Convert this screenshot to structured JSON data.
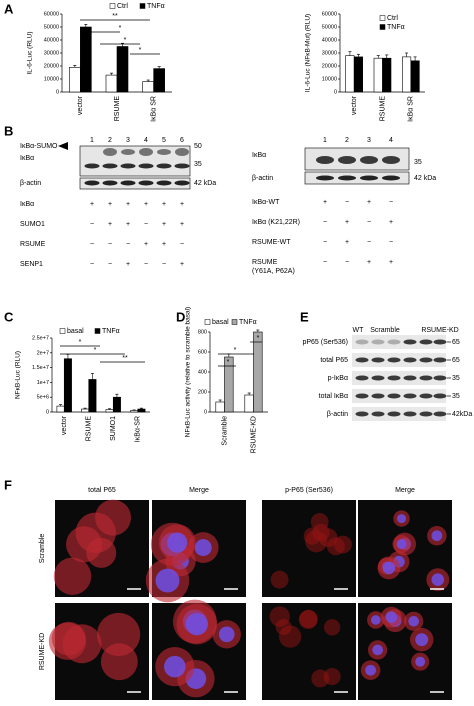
{
  "chart_data": [
    {
      "type": "bar",
      "ylabel": "IL-6-Luc (RLU)",
      "categories": [
        "vector",
        "RSUME",
        "IκBα SR"
      ],
      "series": [
        {
          "name": "Ctrl",
          "color": "#ffffff",
          "values": [
            19000,
            13000,
            8000
          ],
          "errors": [
            1500,
            1500,
            1200
          ]
        },
        {
          "name": "TNFα",
          "color": "#000000",
          "values": [
            50000,
            35000,
            18000
          ],
          "errors": [
            2000,
            2500,
            1500
          ]
        }
      ],
      "ylim": [
        0,
        60000
      ],
      "yticks": [
        0,
        10000,
        20000,
        30000,
        40000,
        50000,
        60000
      ],
      "annotations": [
        "**",
        "*",
        "*",
        "*"
      ]
    },
    {
      "type": "bar",
      "ylabel": "IL-6-Luc (NFκB-Mut) (RLU)",
      "categories": [
        "vector",
        "RSUME",
        "IκBα SR"
      ],
      "series": [
        {
          "name": "Ctrl",
          "color": "#ffffff",
          "values": [
            28000,
            26000,
            27000
          ],
          "errors": [
            3000,
            2000,
            3000
          ]
        },
        {
          "name": "TNFα",
          "color": "#000000",
          "values": [
            27000,
            26000,
            24000
          ],
          "errors": [
            2000,
            2500,
            3000
          ]
        }
      ],
      "ylim": [
        0,
        60000
      ],
      "yticks": [
        0,
        10000,
        20000,
        30000,
        40000,
        50000,
        60000
      ],
      "annotations": []
    },
    {
      "type": "bar",
      "ylabel": "NFκB-Luc (RLU)",
      "categories": [
        "vector",
        "RSUME",
        "SUMO1",
        "IκBα-SR"
      ],
      "series": [
        {
          "name": "basal",
          "color": "#ffffff",
          "values": [
            2000000,
            1000000,
            800000,
            500000
          ],
          "errors": [
            500000,
            300000,
            300000,
            200000
          ]
        },
        {
          "name": "TNFα",
          "color": "#000000",
          "values": [
            18000000,
            11000000,
            5000000,
            1000000
          ],
          "errors": [
            1500000,
            2000000,
            1000000,
            300000
          ]
        }
      ],
      "ylim": [
        0,
        25000000
      ],
      "yticks": [
        0,
        {
          "value": 5000000,
          "label": "5e+6"
        },
        {
          "value": 10000000,
          "label": "1e+7"
        },
        {
          "value": 15000000,
          "label": "1.5e+7"
        },
        {
          "value": 20000000,
          "label": "2e+7"
        },
        {
          "value": 25000000,
          "label": "2.5e+7"
        }
      ],
      "annotations": [
        "*",
        "*",
        "**"
      ]
    },
    {
      "type": "bar",
      "ylabel": "NFκB-Luc activity (relative to scramble basal)",
      "categories": [
        "Scramble",
        "RSUME-KD"
      ],
      "series": [
        {
          "name": "basal",
          "color": "#ffffff",
          "values": [
            100,
            170
          ],
          "errors": [
            20,
            20
          ]
        },
        {
          "name": "TNFα",
          "color": "#a8a8a8",
          "values": [
            550,
            800
          ],
          "errors": [
            30,
            20
          ]
        }
      ],
      "ylim": [
        0,
        800
      ],
      "yticks": [
        0,
        200,
        400,
        600,
        800
      ],
      "annotations": [
        "*",
        "*",
        "*"
      ]
    }
  ],
  "panel_letters": [
    "A",
    "B",
    "C",
    "D",
    "E",
    "F"
  ],
  "panel_B": {
    "left": {
      "lanes": [
        "1",
        "2",
        "3",
        "4",
        "5",
        "6"
      ],
      "bands": [
        "IκBα-SUMO",
        "IκBα",
        "β-actin"
      ],
      "markers": [
        "50",
        "35",
        "42 kDa"
      ],
      "conditions": [
        {
          "name": [
            "IκBα"
          ],
          "signs": [
            "+",
            "+",
            "+",
            "+",
            "+",
            "+"
          ]
        },
        {
          "name": [
            "SUMO1"
          ],
          "signs": [
            "−",
            "+",
            "+",
            "−",
            "+",
            "+"
          ]
        },
        {
          "name": [
            "RSUME"
          ],
          "signs": [
            "−",
            "−",
            "−",
            "+",
            "+",
            "−"
          ]
        },
        {
          "name": [
            "SENP1"
          ],
          "signs": [
            "−",
            "−",
            "+",
            "−",
            "−",
            "+"
          ]
        }
      ]
    },
    "right": {
      "lanes": [
        "1",
        "2",
        "3",
        "4"
      ],
      "bands": [
        "IκBα",
        "β-actin"
      ],
      "markers": [
        "35",
        "42 kDa"
      ],
      "conditions": [
        {
          "name": [
            "IκBα-WT"
          ],
          "signs": [
            "+",
            "−",
            "+",
            "−"
          ]
        },
        {
          "name": [
            "IκBα (K21,22R)"
          ],
          "signs": [
            "−",
            "+",
            "−",
            "+"
          ]
        },
        {
          "name": [
            "RSUME-WT"
          ],
          "signs": [
            "−",
            "+",
            "−",
            "−"
          ]
        },
        {
          "name": [
            "RSUME",
            "(Y61A, P62A)"
          ],
          "signs": [
            "−",
            "−",
            "+",
            "+"
          ]
        }
      ]
    }
  },
  "panel_E": {
    "groups": [
      "WT",
      "Scramble",
      "RSUME-KD"
    ],
    "rows": [
      {
        "name": "pP65 (Ser536)",
        "marker": "65"
      },
      {
        "name": "total P65",
        "marker": "65"
      },
      {
        "name": "p-IκBα",
        "marker": "35"
      },
      {
        "name": "total IκBα",
        "marker": "35"
      },
      {
        "name": "β-actin",
        "marker": "42kDa"
      }
    ]
  },
  "panel_F": {
    "columns": [
      "total P65",
      "Merge",
      "p-P65 (Ser536)",
      "Merge"
    ],
    "rows": [
      "Scramble",
      "RSUME-KD"
    ]
  }
}
